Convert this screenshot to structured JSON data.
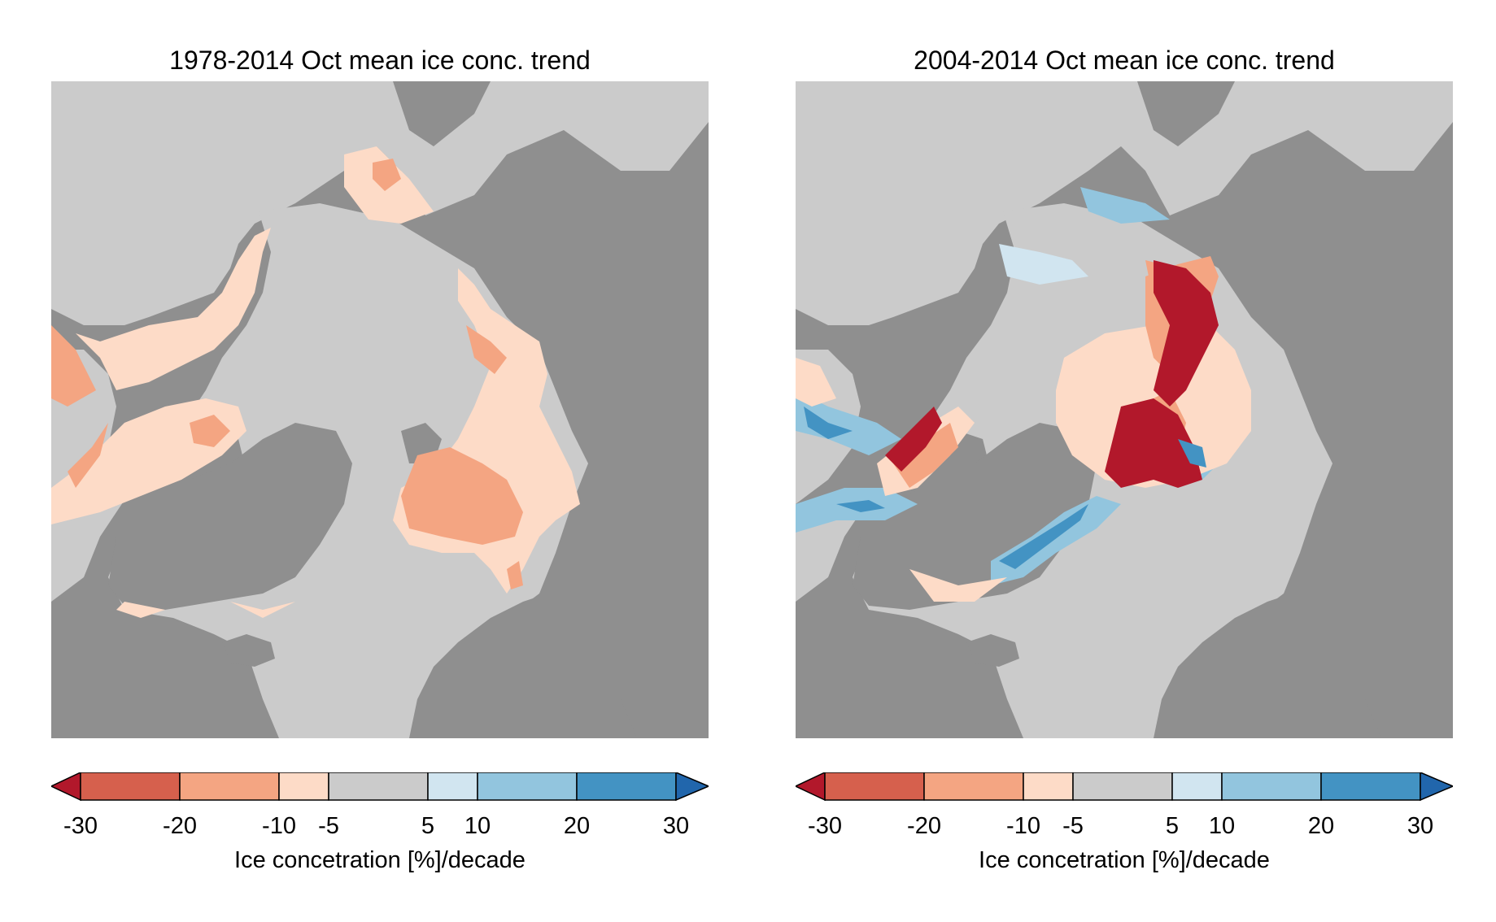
{
  "panels": [
    {
      "title": "1978-2014 Oct mean ice conc. trend",
      "colorbar": {
        "ticks": [
          "-30",
          "-20",
          "-10",
          "-5",
          "5",
          "10",
          "20",
          "30"
        ],
        "label": "Ice concetration [%]/decade"
      }
    },
    {
      "title": "2004-2014 Oct mean ice conc. trend",
      "colorbar": {
        "ticks": [
          "-30",
          "-20",
          "-10",
          "-5",
          "5",
          "10",
          "20",
          "30"
        ],
        "label": "Ice concetration [%]/decade"
      }
    }
  ],
  "colors": {
    "land": "#8f8f8f",
    "ocean": "#cbcbcb",
    "under_min": "#b2182b",
    "minus30_minus20": "#d6604d",
    "minus20_minus10": "#f4a582",
    "minus10_minus5": "#fddbc7",
    "minus5_5": "#cbcbcb",
    "plus5_10": "#d1e5f0",
    "plus10_20": "#92c5de",
    "plus20_30": "#4393c3",
    "over_max": "#2166ac"
  },
  "colorbar_levels": [
    -30,
    -20,
    -10,
    -5,
    5,
    10,
    20,
    30
  ]
}
